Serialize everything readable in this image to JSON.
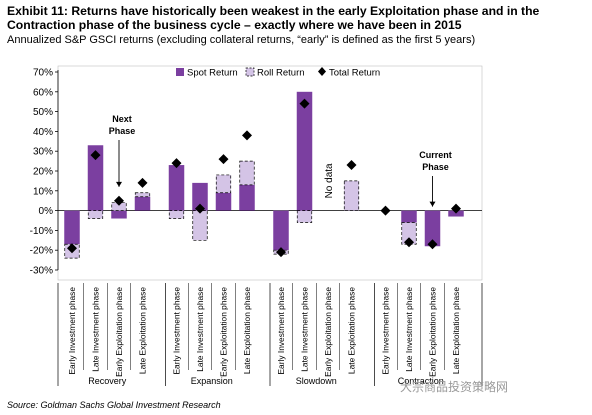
{
  "header": {
    "title": "Exhibit 11: Returns have historically been weakest in the early Exploitation phase and in the Contraction phase of the business cycle – exactly where we have been in 2015",
    "subtitle": "Annualized S&P GSCI returns (excluding collateral returns, “early” is defined as the first 5 years)"
  },
  "footer": {
    "source": "Source: Goldman Sachs Global Investment Research",
    "watermark": "大宗商品投资策略网"
  },
  "colors": {
    "spot": "#7b3fa0",
    "roll": "#d4c4e6",
    "total": "#000000"
  },
  "chart_data": {
    "type": "bar",
    "title": "",
    "xlabel": "",
    "ylabel": "",
    "ylim": [
      -0.3,
      0.7
    ],
    "yticks": [
      "-30%",
      "-20%",
      "-10%",
      "0%",
      "10%",
      "20%",
      "30%",
      "40%",
      "50%",
      "60%",
      "70%"
    ],
    "grid": false,
    "legend_position": "top",
    "legend": [
      "Spot Return",
      "Roll Return",
      "Total Return"
    ],
    "groups": [
      {
        "name": "Recovery",
        "categories": [
          "Early Investment phase",
          "Late Investment phase",
          "Early Exploitation phase",
          "Late Exploitation phase"
        ]
      },
      {
        "name": "Expansion",
        "categories": [
          "Early Investment phase",
          "Late Investment phase",
          "Early Exploitation phase",
          "Late Exploitation phase"
        ]
      },
      {
        "name": "Slowdown",
        "categories": [
          "Early Investment phase",
          "Late Investment phase",
          "Early Exploitation phase",
          "Late Exploitation phase"
        ]
      },
      {
        "name": "Contraction",
        "categories": [
          "Early Investment phase",
          "Late Investment phase",
          "Early Exploitation phase",
          "Late Exploitation phase"
        ]
      }
    ],
    "series": [
      {
        "name": "Spot Return",
        "values": [
          -0.17,
          0.33,
          -0.04,
          0.07,
          0.23,
          0.14,
          0.09,
          0.13,
          -0.2,
          0.6,
          null,
          0.0,
          0.0,
          -0.06,
          -0.18,
          -0.03
        ]
      },
      {
        "name": "Roll Return",
        "values": [
          -0.07,
          -0.04,
          0.04,
          0.02,
          -0.04,
          -0.15,
          0.09,
          0.12,
          -0.02,
          -0.06,
          null,
          0.15,
          0.0,
          -0.11,
          0.0,
          0.0
        ]
      },
      {
        "name": "Total Return",
        "values": [
          -0.19,
          0.28,
          0.05,
          0.14,
          0.24,
          0.01,
          0.26,
          0.38,
          -0.21,
          0.54,
          null,
          0.23,
          0.0,
          -0.16,
          -0.17,
          0.01
        ]
      }
    ],
    "annotations": [
      {
        "text": "Next Phase",
        "lines": [
          "Next",
          "Phase"
        ],
        "index": 2
      },
      {
        "text": "Current Phase",
        "lines": [
          "Current",
          "Phase"
        ],
        "index": 14
      },
      {
        "text": "No data",
        "index": 10
      }
    ]
  }
}
